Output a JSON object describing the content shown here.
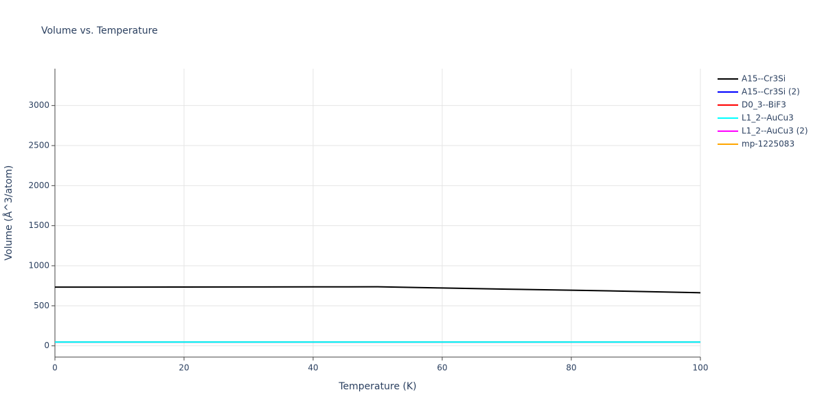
{
  "chart_data": {
    "type": "line",
    "title": "Volume vs. Temperature",
    "x_label": "Temperature (K)",
    "y_label": "Volume (Å^3/atom)",
    "x": [
      0,
      10,
      20,
      30,
      40,
      50,
      60,
      70,
      80,
      90,
      100
    ],
    "series": [
      {
        "name": "A15--Cr3Si",
        "color": "#000000",
        "values": [
          733,
          733,
          734,
          735,
          736,
          737,
          722,
          708,
          695,
          680,
          663
        ]
      },
      {
        "name": "A15--Cr3Si (2)",
        "color": "#0000ff",
        "values": [
          48,
          48,
          48,
          48,
          48,
          48,
          48,
          48,
          48,
          48,
          48
        ]
      },
      {
        "name": "D0_3--BiF3",
        "color": "#ff0000",
        "values": [
          48,
          48,
          48,
          48,
          48,
          48,
          48,
          48,
          48,
          48,
          48
        ]
      },
      {
        "name": "L1_2--AuCu3",
        "color": "#00ffff",
        "values": [
          48,
          48,
          48,
          48,
          48,
          48,
          48,
          48,
          48,
          48,
          48
        ]
      },
      {
        "name": "L1_2--AuCu3 (2)",
        "color": "#ff00ff",
        "values": [
          null,
          null,
          null,
          null,
          null,
          null,
          null,
          null,
          null,
          null,
          null
        ]
      },
      {
        "name": "mp-1225083",
        "color": "#ffa500",
        "values": [
          null,
          null,
          null,
          null,
          null,
          null,
          null,
          null,
          null,
          null,
          null
        ]
      }
    ],
    "xlim": [
      0,
      100
    ],
    "xticks": [
      0,
      20,
      40,
      60,
      80,
      100
    ],
    "ylim": [
      -140,
      3460
    ],
    "yticks": [
      0,
      500,
      1000,
      1500,
      2000,
      2500,
      3000
    ],
    "grid": true,
    "legend": "right"
  }
}
